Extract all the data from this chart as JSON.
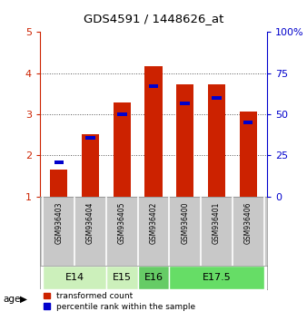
{
  "title": "GDS4591 / 1448626_at",
  "samples": [
    "GSM936403",
    "GSM936404",
    "GSM936405",
    "GSM936402",
    "GSM936400",
    "GSM936401",
    "GSM936406"
  ],
  "red_values": [
    1.65,
    2.52,
    3.28,
    4.17,
    3.72,
    3.74,
    3.07
  ],
  "blue_values": [
    1.83,
    2.42,
    3.0,
    3.68,
    3.26,
    3.4,
    2.8
  ],
  "age_groups": [
    {
      "label": "E14",
      "span": [
        0,
        2
      ],
      "color": "#ccf0bb"
    },
    {
      "label": "E15",
      "span": [
        2,
        3
      ],
      "color": "#ccf0bb"
    },
    {
      "label": "E16",
      "span": [
        3,
        4
      ],
      "color": "#66cc66"
    },
    {
      "label": "E17.5",
      "span": [
        4,
        7
      ],
      "color": "#66dd66"
    }
  ],
  "ylim": [
    1,
    5
  ],
  "yticks": [
    1,
    2,
    3,
    4,
    5
  ],
  "y2lim": [
    0,
    100
  ],
  "y2ticks": [
    0,
    25,
    50,
    75,
    100
  ],
  "y2ticklabels": [
    "0",
    "25",
    "50",
    "75",
    "100%"
  ],
  "left_axis_color": "#cc2200",
  "right_axis_color": "#0000cc",
  "bar_width": 0.55,
  "red_color": "#cc2200",
  "blue_color": "#0000cc",
  "grid_color": "#555555",
  "bg_color": "#ffffff",
  "sample_bg": "#c8c8c8"
}
